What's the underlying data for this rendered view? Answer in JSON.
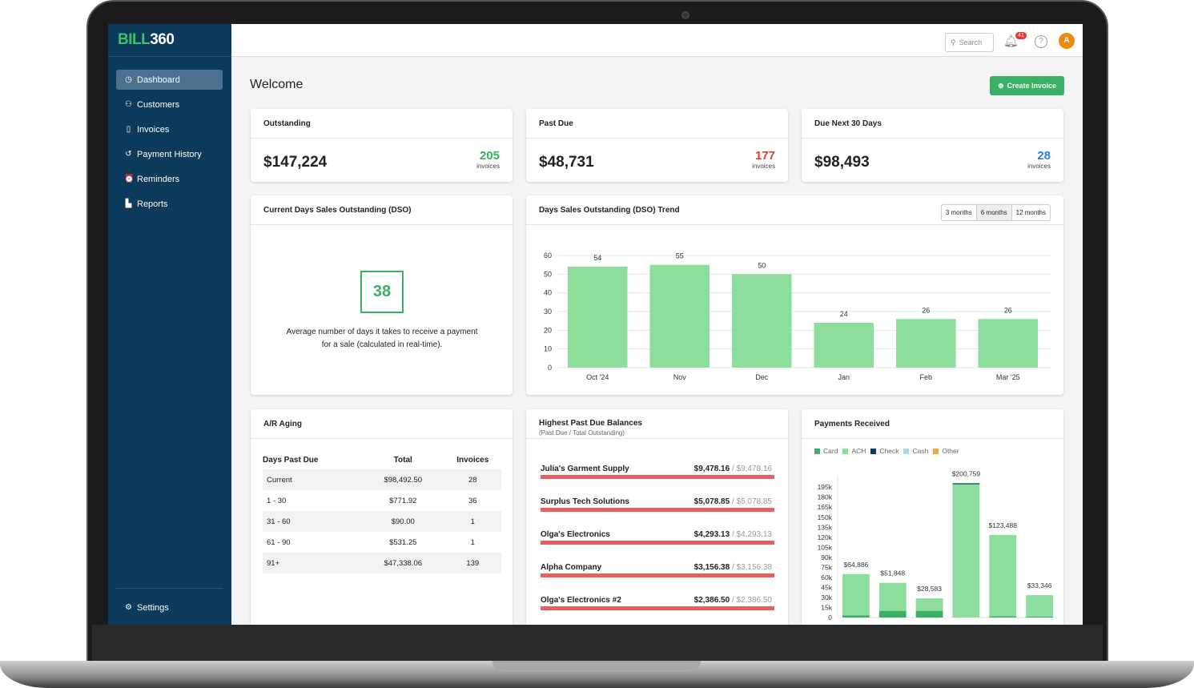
{
  "brand": {
    "logo_a": "BILL",
    "logo_b": "360"
  },
  "sidebar": {
    "items": [
      {
        "label": "Dashboard",
        "icon": "gauge-icon"
      },
      {
        "label": "Customers",
        "icon": "user-icon"
      },
      {
        "label": "Invoices",
        "icon": "invoice-icon"
      },
      {
        "label": "Payment History",
        "icon": "history-icon"
      },
      {
        "label": "Reminders",
        "icon": "alarm-clock-icon"
      },
      {
        "label": "Reports",
        "icon": "bar-chart-icon"
      }
    ],
    "settings": "Settings"
  },
  "topbar": {
    "search_placeholder": "Search",
    "notifications": "41",
    "avatar": "A"
  },
  "page": {
    "title": "Welcome",
    "create_label": "Create Invoice"
  },
  "summary": [
    {
      "title": "Outstanding",
      "amount": "$147,224",
      "count": "205",
      "count_label": "invoices",
      "color": "#3ab064"
    },
    {
      "title": "Past Due",
      "amount": "$48,731",
      "count": "177",
      "count_label": "invoices",
      "color": "#e53935"
    },
    {
      "title": "Due Next 30 Days",
      "amount": "$98,493",
      "count": "28",
      "count_label": "invoices",
      "color": "#2f7de1"
    }
  ],
  "dso": {
    "title": "Current Days Sales Outstanding (DSO)",
    "value": "38",
    "description": "Average number of days it takes to receive a payment for a sale (calculated in real-time)."
  },
  "trend": {
    "title": "Days Sales Outstanding (DSO) Trend",
    "ranges": [
      "3 months",
      "6 months",
      "12 months"
    ],
    "selected_range": "6 months"
  },
  "aging": {
    "title": "A/R Aging",
    "headers": [
      "Days Past Due",
      "Total",
      "Invoices"
    ],
    "rows": [
      [
        "Current",
        "$98,492.50",
        "28"
      ],
      [
        "1 - 30",
        "$771.92",
        "36"
      ],
      [
        "31 - 60",
        "$90.00",
        "1"
      ],
      [
        "61 - 90",
        "$531.25",
        "1"
      ],
      [
        "91+",
        "$47,338.06",
        "139"
      ]
    ]
  },
  "past_due": {
    "title": "Highest Past Due Balances",
    "subtitle": "(Past Due / Total Outstanding)",
    "rows": [
      {
        "name": "Julia's Garment Supply",
        "past_due": "$9,478.16",
        "total": "/ $9,478.16"
      },
      {
        "name": "Surplus Tech Solutions",
        "past_due": "$5,078.85",
        "total": "/ $5,078.85"
      },
      {
        "name": "Olga's Electronics",
        "past_due": "$4,293.13",
        "total": "/ $4,293.13"
      },
      {
        "name": "Alpha Company",
        "past_due": "$3,156.38",
        "total": "/ $3,156.38"
      },
      {
        "name": "Olga's Electronics #2",
        "past_due": "$2,386.50",
        "total": "/ $2,386.50"
      }
    ]
  },
  "payments": {
    "title": "Payments Received"
  },
  "chart_data": [
    {
      "type": "bar",
      "title": "Days Sales Outstanding (DSO) Trend",
      "categories": [
        "Oct '24",
        "Nov",
        "Dec",
        "Jan",
        "Feb",
        "Mar '25"
      ],
      "values": [
        54,
        55,
        50,
        24,
        26,
        26
      ],
      "ylim": [
        0,
        60
      ],
      "yticks": [
        0,
        10,
        20,
        30,
        40,
        50,
        60
      ],
      "grid": true,
      "color": "#8ddd9c"
    },
    {
      "type": "bar",
      "stacked": true,
      "title": "Payments Received",
      "legend": [
        "Card",
        "ACH",
        "Check",
        "Cash",
        "Other"
      ],
      "legend_colors": [
        "#3ab064",
        "#8ddd9c",
        "#0b3a5b",
        "#a8d8e0",
        "#f4a340"
      ],
      "legend_position": "top-left",
      "totals": [
        "$64,886",
        "$51,848",
        "$28,583",
        "$200,759",
        "$123,488",
        "$33,346"
      ],
      "series": [
        {
          "name": "Card",
          "values": [
            3000,
            10000,
            10000,
            0,
            2000,
            1500
          ]
        },
        {
          "name": "ACH",
          "values": [
            61886,
            41848,
            18583,
            199259,
            121488,
            31846
          ]
        },
        {
          "name": "Check",
          "values": [
            0,
            0,
            0,
            1500,
            0,
            0
          ]
        }
      ],
      "ylim": [
        0,
        200000
      ],
      "yticks": [
        "0",
        "15k",
        "30k",
        "45k",
        "60k",
        "75k",
        "90k",
        "105k",
        "120k",
        "135k",
        "150k",
        "165k",
        "180k",
        "195k"
      ]
    }
  ]
}
